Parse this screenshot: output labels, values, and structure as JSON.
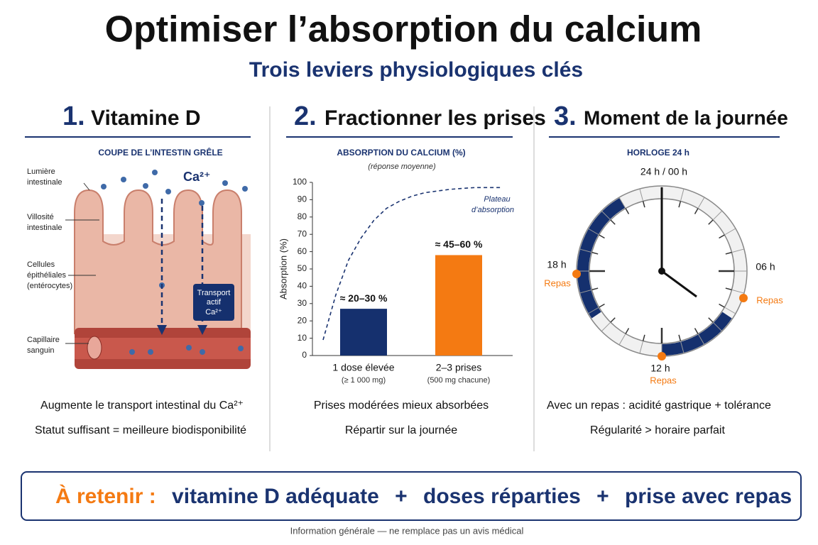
{
  "header": {
    "title": "Optimiser l’absorption du calcium",
    "subtitle": "Trois leviers physiologiques clés"
  },
  "sections": [
    {
      "number": "1.",
      "heading": "Vitamine D",
      "figure_title": "COUPE DE L’INTESTIN GRÊLE",
      "figure_labels": [
        "Lumière",
        "intestinale",
        "Villosité",
        "intestinale",
        "Cellules",
        "épithéliales",
        "(entérocytes)",
        "Capillaire",
        "sanguin"
      ],
      "ion": "Ca²⁺",
      "box_lines": [
        "Transport",
        "actif",
        "Ca²⁺"
      ],
      "notes": [
        "Augmente le transport intestinal du Ca²⁺",
        "Statut suffisant = meilleure biodisponibilité"
      ]
    },
    {
      "number": "2.",
      "heading": "Fractionner les prises",
      "notes": [
        "Prises modérées mieux absorbées",
        "Répartir sur la journée"
      ]
    },
    {
      "number": "3.",
      "heading": "Moment de la journée",
      "figure_title": "HORLOGE 24 h",
      "clock_labels": [
        "24 h / 00 h",
        "06 h",
        "12 h",
        "18 h"
      ],
      "meal_label": "Repas",
      "notes": [
        "Avec un repas : acidité gastrique + tolérance",
        "Régularité > horaire parfait"
      ]
    }
  ],
  "chart_data": {
    "type": "bar",
    "title": "ABSORPTION DU CALCIUM (%)",
    "subtitle": "(réponse moyenne)",
    "ylabel": "Absorption (%)",
    "categories": [
      "1 dose élevée",
      "2–3 prises"
    ],
    "category_notes": [
      "(≥ 1 000 mg)",
      "(500 mg chacune)"
    ],
    "values": [
      27,
      58
    ],
    "value_labels": [
      "≈ 20–30 %",
      "≈ 45–60 %"
    ],
    "colors": [
      "#15306e",
      "#f47a12"
    ],
    "ylim": [
      0,
      100
    ],
    "yticks": [
      0,
      10,
      20,
      30,
      40,
      50,
      60,
      70,
      80,
      90,
      100
    ],
    "curve": {
      "values": [
        9,
        35,
        55,
        68,
        78,
        85,
        89,
        92,
        94,
        95,
        96,
        96.5,
        97,
        97,
        97
      ],
      "color": "#1a3370"
    },
    "annotation": [
      "Plateau",
      "d’absorption"
    ]
  },
  "takeaway": {
    "label": "À retenir :",
    "items": [
      "vitamine D adéquate",
      "doses réparties",
      "prise avec repas"
    ],
    "separators": [
      "+",
      "+"
    ]
  },
  "footer": "Information générale — ne remplace pas un avis médical"
}
